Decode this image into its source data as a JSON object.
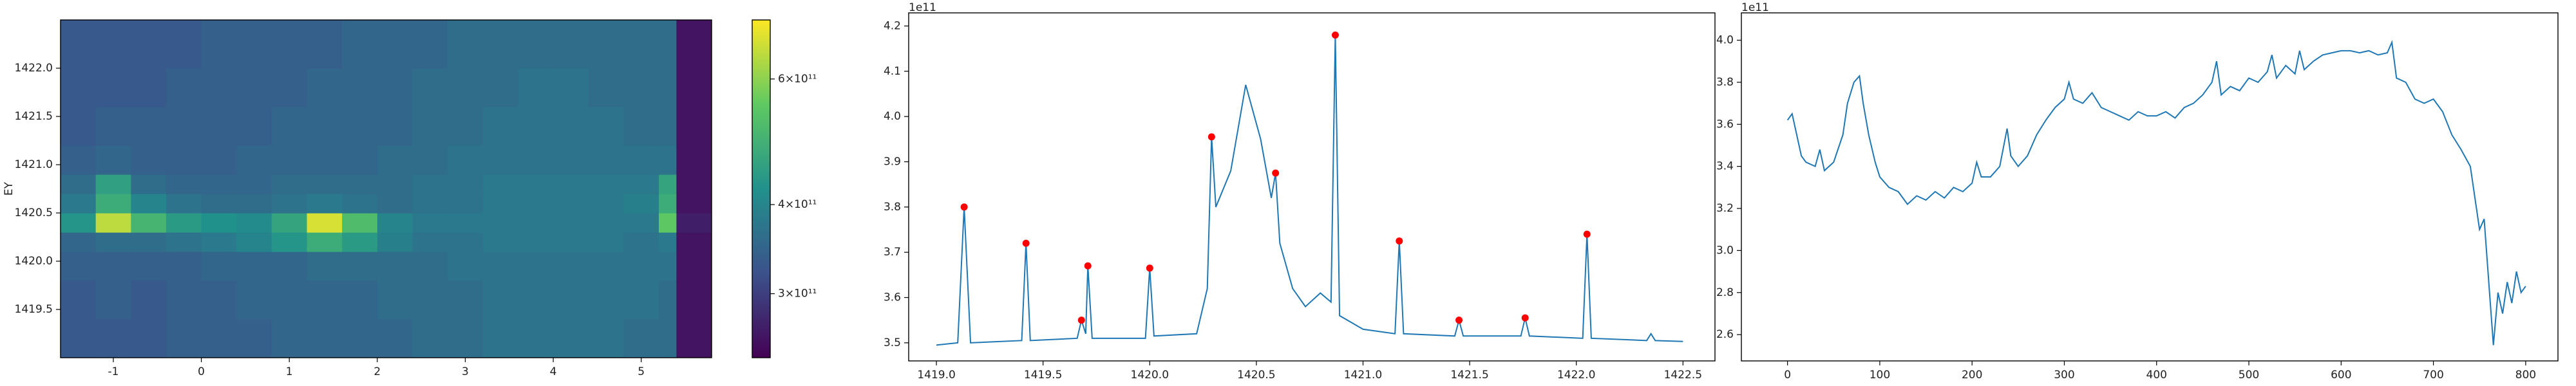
{
  "chart_data": [
    {
      "type": "heatmap",
      "ylabel": "EY",
      "xlim": [
        -1.6,
        5.8
      ],
      "ylim": [
        1419.0,
        1422.5
      ],
      "xticks": [
        -1,
        0,
        1,
        2,
        3,
        4,
        5
      ],
      "yticks": [
        1419.5,
        {
          "value": 1420.0,
          "label": "1420.0"
        },
        1420.5,
        {
          "value": 1421.0,
          "label": "1421.0"
        },
        1421.5,
        {
          "value": 1422.0,
          "label": "1422.0"
        }
      ],
      "x_edges": [
        -1.6,
        -1.2,
        -0.8,
        -0.4,
        0,
        0.4,
        0.8,
        1.2,
        1.6,
        2.0,
        2.4,
        2.8,
        3.2,
        3.6,
        4.0,
        4.4,
        4.8,
        5.2,
        5.4,
        5.8
      ],
      "y_edges": [
        1419.0,
        1419.4,
        1419.8,
        1420.1,
        1420.3,
        1420.5,
        1420.7,
        1420.9,
        1421.2,
        1421.6,
        1422.0,
        1422.5
      ],
      "z": [
        [
          330000000000.0,
          330000000000.0,
          330000000000.0,
          340000000000.0,
          340000000000.0,
          340000000000.0,
          350000000000.0,
          350000000000.0,
          350000000000.0,
          350000000000.0,
          360000000000.0,
          360000000000.0,
          370000000000.0,
          370000000000.0,
          370000000000.0,
          370000000000.0,
          360000000000.0,
          360000000000.0,
          260000000000.0
        ],
        [
          330000000000.0,
          340000000000.0,
          330000000000.0,
          340000000000.0,
          340000000000.0,
          350000000000.0,
          350000000000.0,
          350000000000.0,
          350000000000.0,
          360000000000.0,
          360000000000.0,
          360000000000.0,
          370000000000.0,
          370000000000.0,
          370000000000.0,
          370000000000.0,
          370000000000.0,
          360000000000.0,
          260000000000.0
        ],
        [
          340000000000.0,
          340000000000.0,
          340000000000.0,
          340000000000.0,
          350000000000.0,
          350000000000.0,
          350000000000.0,
          360000000000.0,
          360000000000.0,
          360000000000.0,
          360000000000.0,
          370000000000.0,
          370000000000.0,
          370000000000.0,
          370000000000.0,
          370000000000.0,
          370000000000.0,
          370000000000.0,
          260000000000.0
        ],
        [
          350000000000.0,
          360000000000.0,
          360000000000.0,
          370000000000.0,
          380000000000.0,
          400000000000.0,
          430000000000.0,
          480000000000.0,
          440000000000.0,
          390000000000.0,
          370000000000.0,
          370000000000.0,
          380000000000.0,
          380000000000.0,
          380000000000.0,
          380000000000.0,
          370000000000.0,
          380000000000.0,
          260000000000.0
        ],
        [
          430000000000.0,
          650000000000.0,
          500000000000.0,
          440000000000.0,
          420000000000.0,
          410000000000.0,
          460000000000.0,
          680000000000.0,
          520000000000.0,
          400000000000.0,
          380000000000.0,
          380000000000.0,
          380000000000.0,
          380000000000.0,
          380000000000.0,
          380000000000.0,
          380000000000.0,
          550000000000.0,
          270000000000.0
        ],
        [
          380000000000.0,
          480000000000.0,
          400000000000.0,
          370000000000.0,
          360000000000.0,
          360000000000.0,
          370000000000.0,
          380000000000.0,
          370000000000.0,
          360000000000.0,
          370000000000.0,
          370000000000.0,
          380000000000.0,
          380000000000.0,
          380000000000.0,
          380000000000.0,
          390000000000.0,
          480000000000.0,
          260000000000.0
        ],
        [
          360000000000.0,
          450000000000.0,
          360000000000.0,
          350000000000.0,
          350000000000.0,
          350000000000.0,
          360000000000.0,
          360000000000.0,
          360000000000.0,
          360000000000.0,
          370000000000.0,
          370000000000.0,
          380000000000.0,
          380000000000.0,
          380000000000.0,
          380000000000.0,
          380000000000.0,
          460000000000.0,
          260000000000.0
        ],
        [
          340000000000.0,
          350000000000.0,
          340000000000.0,
          340000000000.0,
          340000000000.0,
          350000000000.0,
          350000000000.0,
          350000000000.0,
          350000000000.0,
          360000000000.0,
          360000000000.0,
          370000000000.0,
          370000000000.0,
          370000000000.0,
          370000000000.0,
          370000000000.0,
          370000000000.0,
          370000000000.0,
          260000000000.0
        ],
        [
          330000000000.0,
          340000000000.0,
          340000000000.0,
          340000000000.0,
          340000000000.0,
          340000000000.0,
          350000000000.0,
          350000000000.0,
          350000000000.0,
          350000000000.0,
          360000000000.0,
          360000000000.0,
          370000000000.0,
          370000000000.0,
          370000000000.0,
          370000000000.0,
          360000000000.0,
          360000000000.0,
          260000000000.0
        ],
        [
          330000000000.0,
          330000000000.0,
          330000000000.0,
          340000000000.0,
          340000000000.0,
          340000000000.0,
          340000000000.0,
          350000000000.0,
          350000000000.0,
          350000000000.0,
          360000000000.0,
          360000000000.0,
          360000000000.0,
          370000000000.0,
          370000000000.0,
          360000000000.0,
          360000000000.0,
          360000000000.0,
          260000000000.0
        ],
        [
          330000000000.0,
          330000000000.0,
          330000000000.0,
          330000000000.0,
          340000000000.0,
          340000000000.0,
          340000000000.0,
          340000000000.0,
          350000000000.0,
          350000000000.0,
          350000000000.0,
          360000000000.0,
          360000000000.0,
          360000000000.0,
          360000000000.0,
          360000000000.0,
          360000000000.0,
          360000000000.0,
          260000000000.0
        ]
      ],
      "colormap": [
        "#440154",
        "#3b528b",
        "#21918c",
        "#5ec962",
        "#fde725"
      ],
      "clim": [
        244000000000.0,
        726000000000.0
      ],
      "color_log": true,
      "cticks": [
        {
          "value": 300000000000.0,
          "label": "3×10¹¹"
        },
        {
          "value": 400000000000.0,
          "label": "4×10¹¹"
        },
        {
          "value": 600000000000.0,
          "label": "6×10¹¹"
        }
      ]
    },
    {
      "type": "line",
      "offset_text": "1e11",
      "xlim": [
        1418.87,
        1422.65
      ],
      "ylim": [
        3.46,
        4.229
      ],
      "xticks": [
        {
          "value": 1419.0,
          "label": "1419.0"
        },
        1419.5,
        {
          "value": 1420.0,
          "label": "1420.0"
        },
        1420.5,
        {
          "value": 1421.0,
          "label": "1421.0"
        },
        1421.5,
        {
          "value": 1422.0,
          "label": "1422.0"
        },
        1422.5
      ],
      "yticks": [
        3.5,
        3.6,
        3.7,
        3.8,
        3.9,
        {
          "value": 4.0,
          "label": "4.0"
        },
        4.1,
        4.2
      ],
      "series": [
        {
          "kind": "line",
          "color": "#1f77b4",
          "x": [
            1419.0,
            1419.1,
            1419.13,
            1419.16,
            1419.4,
            1419.42,
            1419.44,
            1419.66,
            1419.68,
            1419.7,
            1419.71,
            1419.73,
            1419.98,
            1420.0,
            1420.02,
            1420.22,
            1420.27,
            1420.29,
            1420.31,
            1420.38,
            1420.45,
            1420.52,
            1420.57,
            1420.59,
            1420.61,
            1420.67,
            1420.73,
            1420.8,
            1420.85,
            1420.87,
            1420.89,
            1421.0,
            1421.15,
            1421.17,
            1421.19,
            1421.43,
            1421.45,
            1421.47,
            1421.74,
            1421.76,
            1421.78,
            1422.03,
            1422.05,
            1422.07,
            1422.33,
            1422.35,
            1422.37,
            1422.5
          ],
          "values": [
            3.495,
            3.5,
            3.8,
            3.5,
            3.505,
            3.72,
            3.505,
            3.51,
            3.55,
            3.52,
            3.67,
            3.51,
            3.51,
            3.665,
            3.515,
            3.52,
            3.62,
            3.955,
            3.8,
            3.88,
            4.07,
            3.95,
            3.82,
            3.875,
            3.72,
            3.62,
            3.58,
            3.61,
            3.59,
            4.18,
            3.56,
            3.53,
            3.52,
            3.725,
            3.52,
            3.515,
            3.55,
            3.515,
            3.515,
            3.555,
            3.515,
            3.51,
            3.74,
            3.51,
            3.505,
            3.52,
            3.505,
            3.503
          ]
        },
        {
          "kind": "scatter",
          "color": "#ff0000",
          "x": [
            1419.13,
            1419.42,
            1419.68,
            1419.71,
            1420.0,
            1420.29,
            1420.59,
            1420.87,
            1421.17,
            1421.45,
            1421.76,
            1422.05
          ],
          "values": [
            3.8,
            3.72,
            3.55,
            3.67,
            3.665,
            3.955,
            3.875,
            4.18,
            3.725,
            3.55,
            3.555,
            3.74
          ]
        }
      ]
    },
    {
      "type": "line",
      "offset_text": "1e11",
      "xlim": [
        -50,
        835
      ],
      "ylim": [
        2.475,
        4.13
      ],
      "xticks": [
        0,
        100,
        200,
        300,
        400,
        500,
        600,
        700,
        800
      ],
      "yticks": [
        2.6,
        2.8,
        {
          "value": 3.0,
          "label": "3.0"
        },
        3.2,
        3.4,
        3.6,
        3.8,
        {
          "value": 4.0,
          "label": "4.0"
        }
      ],
      "series": [
        {
          "kind": "line",
          "color": "#1f77b4",
          "x": [
            0,
            5,
            10,
            15,
            20,
            30,
            35,
            40,
            50,
            60,
            65,
            72,
            78,
            82,
            88,
            95,
            100,
            110,
            120,
            130,
            140,
            150,
            160,
            170,
            180,
            190,
            200,
            205,
            210,
            220,
            230,
            238,
            242,
            250,
            260,
            270,
            280,
            290,
            300,
            305,
            310,
            320,
            330,
            340,
            350,
            360,
            370,
            380,
            390,
            400,
            410,
            420,
            430,
            440,
            450,
            460,
            465,
            470,
            480,
            490,
            500,
            510,
            520,
            525,
            530,
            540,
            550,
            555,
            560,
            570,
            580,
            590,
            600,
            610,
            620,
            630,
            640,
            650,
            655,
            660,
            670,
            680,
            690,
            700,
            710,
            720,
            730,
            740,
            745,
            750,
            755,
            760,
            765,
            770,
            775,
            780,
            785,
            790,
            795,
            800
          ],
          "values": [
            3.62,
            3.65,
            3.55,
            3.45,
            3.42,
            3.4,
            3.48,
            3.38,
            3.42,
            3.55,
            3.7,
            3.8,
            3.83,
            3.7,
            3.55,
            3.42,
            3.35,
            3.3,
            3.28,
            3.22,
            3.26,
            3.24,
            3.28,
            3.25,
            3.3,
            3.28,
            3.32,
            3.42,
            3.35,
            3.35,
            3.4,
            3.58,
            3.45,
            3.4,
            3.45,
            3.55,
            3.62,
            3.68,
            3.72,
            3.8,
            3.72,
            3.7,
            3.75,
            3.68,
            3.66,
            3.64,
            3.62,
            3.66,
            3.64,
            3.64,
            3.66,
            3.63,
            3.68,
            3.7,
            3.74,
            3.8,
            3.9,
            3.74,
            3.78,
            3.76,
            3.82,
            3.8,
            3.85,
            3.93,
            3.82,
            3.88,
            3.84,
            3.95,
            3.86,
            3.9,
            3.93,
            3.94,
            3.95,
            3.95,
            3.94,
            3.95,
            3.93,
            3.94,
            3.99,
            3.82,
            3.8,
            3.72,
            3.7,
            3.72,
            3.66,
            3.55,
            3.48,
            3.4,
            3.25,
            3.1,
            3.15,
            2.85,
            2.55,
            2.8,
            2.7,
            2.85,
            2.75,
            2.9,
            2.8,
            2.83
          ]
        }
      ]
    }
  ]
}
